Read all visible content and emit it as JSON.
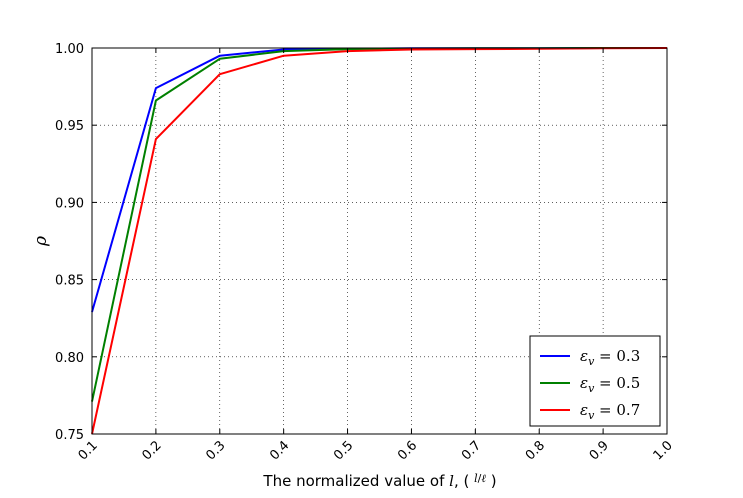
{
  "chart_data": {
    "type": "line",
    "xlabel": "The normalized value of l, ( l/ℓ )",
    "ylabel": "ρ",
    "xlim": [
      0.1,
      1.0
    ],
    "ylim": [
      0.75,
      1.0
    ],
    "x_ticks": [
      "0.1",
      "0.2",
      "0.3",
      "0.4",
      "0.5",
      "0.6",
      "0.7",
      "0.8",
      "0.9",
      "1.0"
    ],
    "y_ticks": [
      "0.75",
      "0.80",
      "0.85",
      "0.90",
      "0.95",
      "1.00"
    ],
    "grid": true,
    "legend_position": "bottom-right",
    "x": [
      0.1,
      0.2,
      0.3,
      0.4,
      0.5,
      0.6,
      0.7,
      0.8,
      0.9,
      1.0
    ],
    "series": [
      {
        "name": "ε_v = 0.3",
        "color": "#0000ff",
        "values": [
          0.829,
          0.974,
          0.995,
          0.999,
          0.9995,
          0.9998,
          0.9999,
          0.9999,
          1.0,
          1.0
        ]
      },
      {
        "name": "ε_v = 0.5",
        "color": "#008000",
        "values": [
          0.771,
          0.966,
          0.993,
          0.998,
          0.9993,
          0.9997,
          0.9998,
          0.9999,
          1.0,
          1.0
        ]
      },
      {
        "name": "ε_v = 0.7",
        "color": "#ff0000",
        "values": [
          0.75,
          0.941,
          0.983,
          0.995,
          0.998,
          0.999,
          0.9993,
          0.9995,
          0.9998,
          1.0
        ]
      }
    ]
  }
}
